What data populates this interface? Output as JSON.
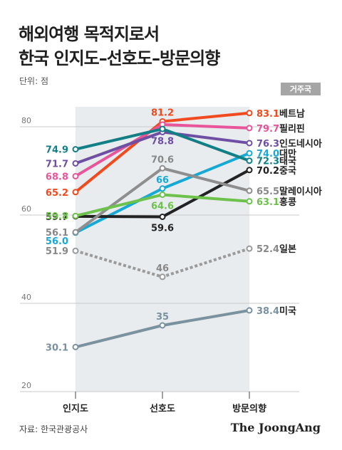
{
  "header": {
    "title_line1": "해외여행 목적지로서",
    "title_line2": "한국 인지도–선호도–방문의향",
    "unit": "단위: 점"
  },
  "footer": {
    "source": "자료: 한국관광공사",
    "brand": "The JoongAng"
  },
  "chart_data": {
    "type": "line",
    "categories": [
      "인지도",
      "선호도",
      "방문의향"
    ],
    "ylim": [
      20,
      85
    ],
    "yticks": [
      20,
      40,
      60,
      80
    ],
    "legend_title": "거주국",
    "series": [
      {
        "name": "베트남",
        "values": [
          65.2,
          81.2,
          83.1
        ],
        "labels": [
          "65.2",
          "81.2",
          "83.1"
        ],
        "color": "#f04a1e",
        "dashed": false
      },
      {
        "name": "필리핀",
        "values": [
          68.8,
          80.5,
          79.7
        ],
        "labels": [
          "68.8",
          "",
          "79.7"
        ],
        "color": "#e8559a",
        "dashed": false
      },
      {
        "name": "인도네시아",
        "values": [
          71.7,
          78.8,
          76.3
        ],
        "labels": [
          "71.7",
          "78.8",
          "76.3"
        ],
        "color": "#6e4fa3",
        "dashed": false
      },
      {
        "name": "대만",
        "values": [
          56.0,
          66,
          74.0
        ],
        "labels": [
          "56.0",
          "66",
          "74.0"
        ],
        "color": "#17a9d6",
        "dashed": false
      },
      {
        "name": "태국",
        "values": [
          74.9,
          79.5,
          72.3
        ],
        "labels": [
          "74.9",
          "",
          "72.3"
        ],
        "color": "#127f86",
        "dashed": false
      },
      {
        "name": "중국",
        "values": [
          59.7,
          59.6,
          70.2
        ],
        "labels": [
          "59.7",
          "59.6",
          "70.2"
        ],
        "color": "#222222",
        "dashed": false
      },
      {
        "name": "말레이시아",
        "values": [
          56.1,
          70.6,
          65.5
        ],
        "labels": [
          "56.1",
          "70.6",
          "65.5"
        ],
        "color": "#8e8e8e",
        "dashed": false
      },
      {
        "name": "홍콩",
        "values": [
          59.8,
          64.6,
          63.1
        ],
        "labels": [
          "59.8",
          "64.6",
          "63.1"
        ],
        "color": "#6cc24a",
        "dashed": false
      },
      {
        "name": "일본",
        "values": [
          51.9,
          46,
          52.4
        ],
        "labels": [
          "51.9",
          "46",
          "52.4"
        ],
        "color": "#9a9a9a",
        "dashed": true
      },
      {
        "name": "미국",
        "values": [
          30.1,
          35,
          38.4
        ],
        "labels": [
          "30.1",
          "35",
          "38.4"
        ],
        "color": "#7a92a0",
        "dashed": false
      }
    ]
  }
}
